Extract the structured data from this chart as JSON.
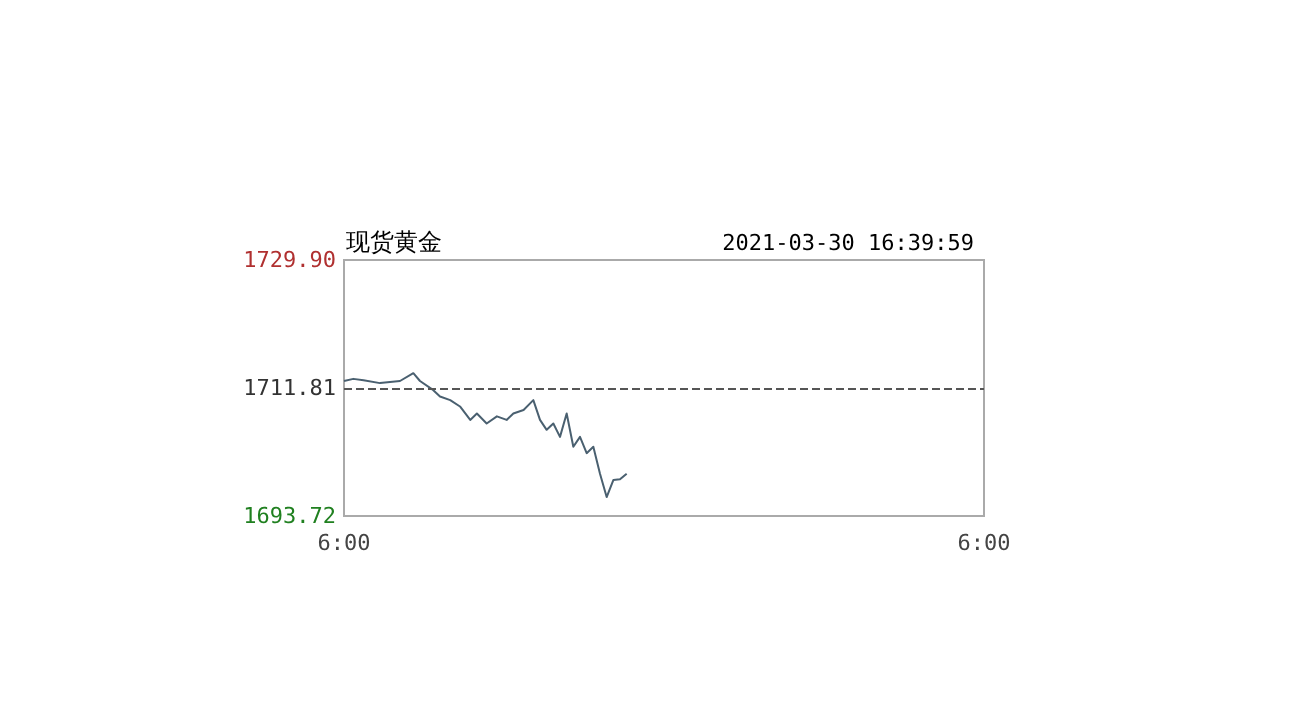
{
  "chart_data": {
    "type": "line",
    "title": "现货黄金",
    "subtitle": "2021-03-30 16:39:59",
    "x": [
      "2021-03-30T06:00",
      "2021-03-30T06:21",
      "2021-03-30T06:44",
      "2021-03-30T07:21",
      "2021-03-30T08:06",
      "2021-03-30T08:36",
      "2021-03-30T08:51",
      "2021-03-30T09:21",
      "2021-03-30T09:36",
      "2021-03-30T09:59",
      "2021-03-30T10:21",
      "2021-03-30T10:44",
      "2021-03-30T10:59",
      "2021-03-30T11:21",
      "2021-03-30T11:44",
      "2021-03-30T12:06",
      "2021-03-30T12:21",
      "2021-03-30T12:44",
      "2021-03-30T13:06",
      "2021-03-30T13:21",
      "2021-03-30T13:36",
      "2021-03-30T13:51",
      "2021-03-30T14:06",
      "2021-03-30T14:21",
      "2021-03-30T14:36",
      "2021-03-30T14:51",
      "2021-03-30T15:06",
      "2021-03-30T15:21",
      "2021-03-30T15:36",
      "2021-03-30T15:51",
      "2021-03-30T16:06",
      "2021-03-30T16:21",
      "2021-03-30T16:36"
    ],
    "series": [
      {
        "color": "#4a6070",
        "values": [
          1712.8,
          1713.1,
          1712.9,
          1712.5,
          1712.8,
          1713.9,
          1712.8,
          1711.5,
          1710.6,
          1710.1,
          1709.2,
          1707.3,
          1708.2,
          1706.8,
          1707.8,
          1707.3,
          1708.2,
          1708.7,
          1710.1,
          1707.3,
          1705.9,
          1706.8,
          1704.9,
          1708.2,
          1703.5,
          1704.9,
          1702.6,
          1703.5,
          1699.7,
          1696.4,
          1698.8,
          1698.9,
          1699.7
        ]
      }
    ],
    "xlim": [
      "2021-03-30T06:00",
      "2021-03-31T06:00"
    ],
    "xticks": [
      {
        "value": "2021-03-30T06:00",
        "label": "6:00"
      },
      {
        "value": "2021-03-31T06:00",
        "label": "6:00"
      }
    ],
    "ylim": [
      1693.72,
      1729.9
    ],
    "yticks": [
      {
        "value": 1693.72,
        "label": "1693.72"
      },
      {
        "value": 1711.81,
        "label": "1711.81"
      },
      {
        "value": 1729.9,
        "label": "1729.90"
      }
    ],
    "ref_lines": [
      {
        "axis": "y",
        "value": 1711.81,
        "color": "#555555",
        "line_style": "dashed"
      }
    ],
    "grid": false,
    "marker": "none",
    "line_style": "solid"
  }
}
